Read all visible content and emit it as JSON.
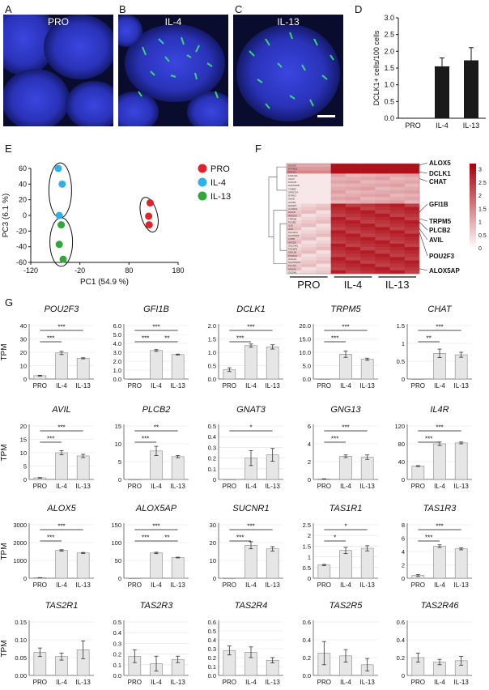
{
  "panel_letters": [
    "A",
    "B",
    "C",
    "D",
    "E",
    "F",
    "G"
  ],
  "micrographs": [
    {
      "label": "PRO",
      "has_green": false
    },
    {
      "label": "IL-4",
      "has_green": true
    },
    {
      "label": "IL-13",
      "has_green": true
    }
  ],
  "colors": {
    "pro": "#e0222d",
    "il4": "#2fb0e8",
    "il13": "#2ea83a",
    "bar_dark": "#1a1a1a",
    "bar_light": "#e6e6e6",
    "nucleus": "#2a34c8",
    "marker": "#2ee05a"
  },
  "chart_data": [
    {
      "id": "D",
      "type": "bar",
      "categories": [
        "PRO",
        "IL-4",
        "IL-13"
      ],
      "values": [
        0,
        1.55,
        1.73
      ],
      "errors": [
        0,
        0.25,
        0.38
      ],
      "ylabel": "DCLK1+ cells/100 cells",
      "ylim": [
        0,
        3.0
      ],
      "yticks": [
        "0.0",
        "0.5",
        "1.0",
        "1.5",
        "2.0",
        "2.5",
        "3.0"
      ]
    },
    {
      "id": "E",
      "type": "scatter",
      "xlabel": "PC1 (54.9 %)",
      "ylabel": "PC3 (6.1 %)",
      "xlim": [
        -120,
        180
      ],
      "ylim": [
        -60,
        60
      ],
      "xticks": [
        "-120",
        "-20",
        "80",
        "180"
      ],
      "yticks": [
        "60",
        "40",
        "20",
        "0",
        "-20",
        "-40",
        "-60"
      ],
      "legend_position": "top-right",
      "series": [
        {
          "name": "PRO",
          "color": "#e0222d",
          "points": [
            [
              123,
              16
            ],
            [
              120,
              -1
            ],
            [
              121,
              -12
            ]
          ]
        },
        {
          "name": "IL-4",
          "color": "#2fb0e8",
          "points": [
            [
              -64,
              60
            ],
            [
              -56,
              40
            ],
            [
              -62,
              0
            ]
          ]
        },
        {
          "name": "IL-13",
          "color": "#2ea83a",
          "points": [
            [
              -58,
              -12
            ],
            [
              -62,
              -37
            ],
            [
              -54,
              -56
            ]
          ]
        }
      ]
    },
    {
      "id": "F",
      "type": "heatmap",
      "scale_ticks": [
        "3",
        "2.5",
        "2",
        "1.5",
        "1",
        "0.5",
        "0"
      ],
      "groups": [
        "PRO",
        "IL-4",
        "IL-13"
      ],
      "genes": [
        "ALOX5",
        "PTPRZ1",
        "DCLK1",
        "FAM49A",
        "CHAT",
        "KCNH5",
        "GADS45B",
        "TUBB3",
        "GPRC5A",
        "NTRK1",
        "SH2B",
        "AVPR1",
        "RAMP1",
        "IL13RA1",
        "GFI1B",
        "HMGA2",
        "TRPM5",
        "PLCB2",
        "IL25",
        "AVIL",
        "POU2F3",
        "ALOX5AP",
        "LRMP",
        "SH2D6",
        "SUCNR1",
        "TAS1R3",
        "ADH1B",
        "PIK3CG",
        "GNG13",
        "ALOX5AP2",
        "PLCG2",
        "ANXA6",
        "OGDHL"
      ],
      "labeled_genes": [
        "ALOX5",
        "DCLK1",
        "CHAT",
        "GFI1B",
        "TRPM5",
        "PLCB2",
        "AVIL",
        "POU2F3",
        "ALOX5AP"
      ]
    },
    {
      "id": "G",
      "type": "bar",
      "ylabel": "TPM",
      "categories": [
        "PRO",
        "IL-4",
        "IL-13"
      ],
      "plots": [
        {
          "gene": "POU2F3",
          "values": [
            2.5,
            19.5,
            15.5
          ],
          "errors": [
            0.3,
            1.2,
            0.4
          ],
          "ylim": [
            0,
            40
          ],
          "yticks": [
            "0",
            "10",
            "20",
            "30",
            "40"
          ],
          "sig": [
            {
              "a": 0,
              "b": 1,
              "label": "***"
            },
            {
              "a": 0,
              "b": 2,
              "label": "***"
            }
          ]
        },
        {
          "gene": "GFI1B",
          "values": [
            0,
            3.2,
            2.75
          ],
          "errors": [
            0,
            0.1,
            0.05
          ],
          "ylim": [
            0,
            6.0
          ],
          "yticks": [
            "0.0",
            "1.0",
            "2.0",
            "3.0",
            "4.0",
            "5.0",
            "6.0"
          ],
          "sig": [
            {
              "a": 0,
              "b": 1,
              "label": "***"
            },
            {
              "a": 1,
              "b": 2,
              "label": "**"
            },
            {
              "a": 0,
              "b": 2,
              "label": "***"
            }
          ]
        },
        {
          "gene": "DCLK1",
          "values": [
            0.35,
            1.25,
            1.2
          ],
          "errors": [
            0.07,
            0.06,
            0.08
          ],
          "ylim": [
            0,
            2.0
          ],
          "yticks": [
            "0.0",
            "0.5",
            "1.0",
            "1.5",
            "2.0"
          ],
          "sig": [
            {
              "a": 0,
              "b": 1,
              "label": "***"
            },
            {
              "a": 0,
              "b": 2,
              "label": "***"
            }
          ]
        },
        {
          "gene": "TRPM5",
          "values": [
            0,
            9.3,
            7.4
          ],
          "errors": [
            0,
            1.2,
            0.4
          ],
          "ylim": [
            0,
            20.0
          ],
          "yticks": [
            "0.0",
            "5.0",
            "10.0",
            "15.0",
            "20.0"
          ],
          "sig": [
            {
              "a": 0,
              "b": 1,
              "label": "***"
            },
            {
              "a": 0,
              "b": 2,
              "label": "***"
            }
          ]
        },
        {
          "gene": "CHAT",
          "values": [
            0,
            0.72,
            0.68
          ],
          "errors": [
            0,
            0.12,
            0.07
          ],
          "ylim": [
            0,
            1.5
          ],
          "yticks": [
            "0",
            "0.5",
            "1",
            "1.5"
          ],
          "sig": [
            {
              "a": 0,
              "b": 1,
              "label": "**"
            },
            {
              "a": 0,
              "b": 2,
              "label": "***"
            }
          ]
        },
        {
          "gene": "AVIL",
          "values": [
            0.6,
            10,
            8.8
          ],
          "errors": [
            0.1,
            0.8,
            0.6
          ],
          "ylim": [
            0,
            20
          ],
          "yticks": [
            "0",
            "5",
            "10",
            "15",
            "20"
          ],
          "sig": [
            {
              "a": 0,
              "b": 1,
              "label": "***"
            },
            {
              "a": 0,
              "b": 2,
              "label": "***"
            }
          ]
        },
        {
          "gene": "PLCB2",
          "values": [
            0,
            8,
            6.4
          ],
          "errors": [
            0,
            1.3,
            0.3
          ],
          "ylim": [
            0,
            15
          ],
          "yticks": [
            "0",
            "5",
            "10",
            "15"
          ],
          "sig": [
            {
              "a": 0,
              "b": 1,
              "label": "***"
            },
            {
              "a": 0,
              "b": 2,
              "label": "**"
            }
          ]
        },
        {
          "gene": "GNAT3",
          "values": [
            0,
            0.2,
            0.23
          ],
          "errors": [
            0,
            0.07,
            0.06
          ],
          "ylim": [
            0,
            0.5
          ],
          "yticks": [
            "0",
            "0.1",
            "0.2",
            "0.3",
            "0.4",
            "0.5"
          ],
          "sig": [
            {
              "a": 0,
              "b": 2,
              "label": "*"
            }
          ]
        },
        {
          "gene": "GNG13",
          "values": [
            0.05,
            2.6,
            2.5
          ],
          "errors": [
            0.02,
            0.15,
            0.25
          ],
          "ylim": [
            0,
            6
          ],
          "yticks": [
            "0",
            "2",
            "4",
            "6"
          ],
          "sig": [
            {
              "a": 0,
              "b": 1,
              "label": "***"
            },
            {
              "a": 0,
              "b": 2,
              "label": "***"
            }
          ]
        },
        {
          "gene": "IL4R",
          "values": [
            30,
            80,
            82
          ],
          "errors": [
            1,
            4,
            2
          ],
          "ylim": [
            0,
            120
          ],
          "yticks": [
            "0",
            "40",
            "80",
            "120"
          ],
          "sig": [
            {
              "a": 0,
              "b": 1,
              "label": "***"
            },
            {
              "a": 0,
              "b": 2,
              "label": "***"
            }
          ]
        },
        {
          "gene": "ALOX5",
          "values": [
            30,
            1560,
            1420
          ],
          "errors": [
            5,
            40,
            30
          ],
          "ylim": [
            0,
            3000
          ],
          "yticks": [
            "0",
            "1000",
            "2000",
            "3000"
          ],
          "sig": [
            {
              "a": 0,
              "b": 1,
              "label": "***"
            },
            {
              "a": 0,
              "b": 2,
              "label": "***"
            }
          ]
        },
        {
          "gene": "ALOX5AP",
          "values": [
            0,
            71,
            58
          ],
          "errors": [
            0,
            2,
            1
          ],
          "ylim": [
            0,
            150
          ],
          "yticks": [
            "0",
            "50",
            "100",
            "150"
          ],
          "sig": [
            {
              "a": 0,
              "b": 1,
              "label": "***"
            },
            {
              "a": 1,
              "b": 2,
              "label": "**"
            },
            {
              "a": 0,
              "b": 2,
              "label": "***"
            }
          ]
        },
        {
          "gene": "SUCNR1",
          "values": [
            0,
            18.5,
            16.5
          ],
          "errors": [
            0,
            2,
            1.2
          ],
          "ylim": [
            0,
            30
          ],
          "yticks": [
            "0",
            "10",
            "20",
            "30"
          ],
          "sig": [
            {
              "a": 0,
              "b": 1,
              "label": "***"
            },
            {
              "a": 0,
              "b": 2,
              "label": "***"
            }
          ]
        },
        {
          "gene": "TAS1R1",
          "values": [
            0.62,
            1.3,
            1.4
          ],
          "errors": [
            0.03,
            0.15,
            0.12
          ],
          "ylim": [
            0,
            2.5
          ],
          "yticks": [
            "0",
            "0.5",
            "1",
            "1.5",
            "2",
            "2.5"
          ],
          "sig": [
            {
              "a": 0,
              "b": 1,
              "label": "*"
            },
            {
              "a": 0,
              "b": 2,
              "label": "*"
            }
          ]
        },
        {
          "gene": "TAS1R3",
          "values": [
            0.4,
            4.8,
            4.4
          ],
          "errors": [
            0.15,
            0.2,
            0.15
          ],
          "ylim": [
            0,
            8
          ],
          "yticks": [
            "0",
            "2",
            "4",
            "6",
            "8"
          ],
          "sig": [
            {
              "a": 0,
              "b": 1,
              "label": "***"
            },
            {
              "a": 0,
              "b": 2,
              "label": "***"
            }
          ]
        },
        {
          "gene": "TAS2R1",
          "values": [
            0.065,
            0.053,
            0.072
          ],
          "errors": [
            0.012,
            0.01,
            0.025
          ],
          "ylim": [
            0,
            0.15
          ],
          "yticks": [
            "0.00",
            "0.05",
            "0.10",
            "0.15"
          ],
          "sig": []
        },
        {
          "gene": "TAS2R3",
          "values": [
            0.18,
            0.11,
            0.15
          ],
          "errors": [
            0.06,
            0.07,
            0.03
          ],
          "ylim": [
            0,
            0.5
          ],
          "yticks": [
            "0.0",
            "0.1",
            "0.2",
            "0.3",
            "0.4",
            "0.5"
          ],
          "sig": []
        },
        {
          "gene": "TAS2R4",
          "values": [
            0.28,
            0.26,
            0.17
          ],
          "errors": [
            0.05,
            0.06,
            0.03
          ],
          "ylim": [
            0,
            0.6
          ],
          "yticks": [
            "0.0",
            "0.1",
            "0.2",
            "0.3",
            "0.4",
            "0.5",
            "0.6"
          ],
          "sig": []
        },
        {
          "gene": "TAS2R5",
          "values": [
            0.25,
            0.22,
            0.12
          ],
          "errors": [
            0.13,
            0.07,
            0.07
          ],
          "ylim": [
            0,
            0.6
          ],
          "yticks": [
            "0.0",
            "0.2",
            "0.4",
            "0.6"
          ],
          "sig": []
        },
        {
          "gene": "TAS2R46",
          "values": [
            0.2,
            0.15,
            0.165
          ],
          "errors": [
            0.05,
            0.03,
            0.05
          ],
          "ylim": [
            0,
            0.6
          ],
          "yticks": [
            "0",
            "0.2",
            "0.4",
            "0.6"
          ],
          "sig": []
        }
      ]
    }
  ]
}
